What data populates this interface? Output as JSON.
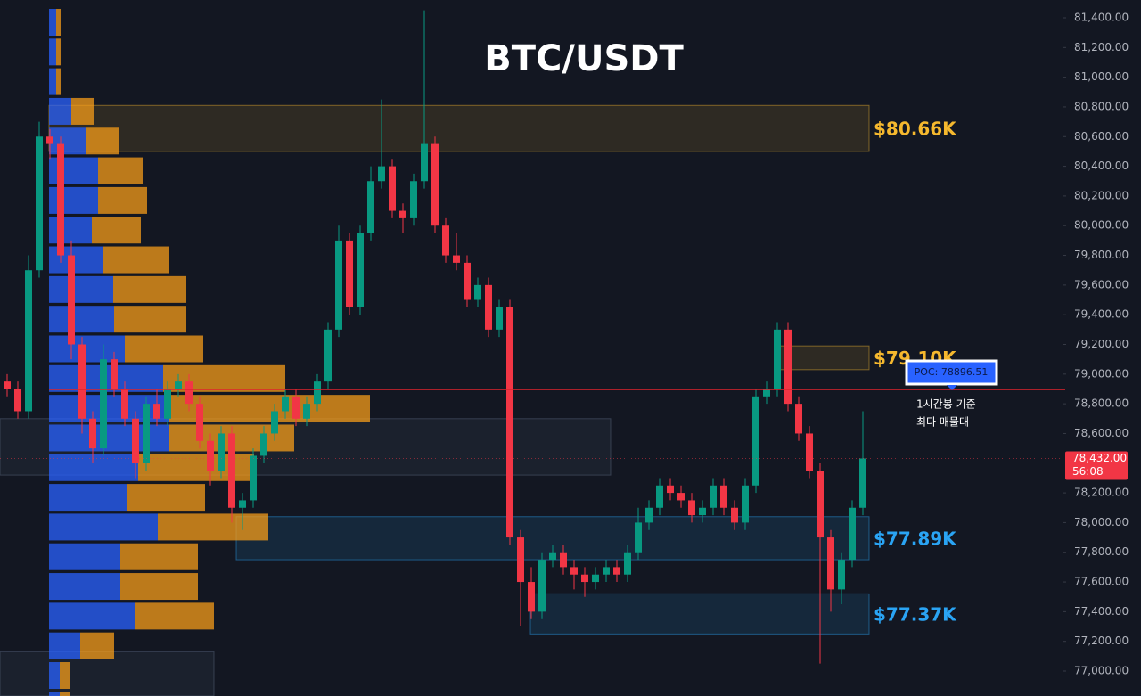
{
  "chart_data": {
    "type": "candlestick",
    "title": "BTC/USDT",
    "ylim": [
      76832,
      81520
    ],
    "yticks": [
      {
        "value": 77000,
        "label": "77,000.00"
      },
      {
        "value": 77200,
        "label": "77,200.00"
      },
      {
        "value": 77400,
        "label": "77,400.00"
      },
      {
        "value": 77600,
        "label": "77,600.00"
      },
      {
        "value": 77800,
        "label": "77,800.00"
      },
      {
        "value": 78000,
        "label": "78,000.00"
      },
      {
        "value": 78200,
        "label": "78,200.00"
      },
      {
        "value": 78600,
        "label": "78,600.00"
      },
      {
        "value": 78800,
        "label": "78,800.00"
      },
      {
        "value": 79000,
        "label": "79,000.00"
      },
      {
        "value": 79200,
        "label": "79,200.00"
      },
      {
        "value": 79400,
        "label": "79,400.00"
      },
      {
        "value": 79600,
        "label": "79,600.00"
      },
      {
        "value": 79800,
        "label": "79,800.00"
      },
      {
        "value": 80000,
        "label": "80,000.00"
      },
      {
        "value": 80200,
        "label": "80,200.00"
      },
      {
        "value": 80400,
        "label": "80,400.00"
      },
      {
        "value": 80600,
        "label": "80,600.00"
      },
      {
        "value": 80800,
        "label": "80,800.00"
      },
      {
        "value": 81000,
        "label": "81,000.00"
      },
      {
        "value": 81200,
        "label": "81,200.00"
      },
      {
        "value": 81400,
        "label": "81,400.00"
      }
    ],
    "up_color": "#089981",
    "down_color": "#f23645",
    "open": [
      78950,
      78900,
      78750,
      79700,
      80600,
      80550,
      79800,
      79200,
      78700,
      78500,
      79100,
      78900,
      78700,
      78400,
      78800,
      78700,
      78900,
      78950,
      78800,
      78550,
      78350,
      78600,
      78100,
      78150,
      78450,
      78600,
      78750,
      78850,
      78700,
      78800,
      78950,
      79300,
      79900,
      79450,
      79950,
      80300,
      80400,
      80100,
      80050,
      80300,
      80550,
      80000,
      79800,
      79750,
      79500,
      79600,
      79300,
      79450,
      77900,
      77600,
      77400,
      77750,
      77800,
      77700,
      77650,
      77600,
      77650,
      77700,
      77650,
      77800,
      78000,
      78100,
      78250,
      78200,
      78150,
      78050,
      78100,
      78250,
      78100,
      78000,
      78250,
      78850,
      78900,
      79300,
      78800,
      78600,
      78350,
      77900,
      77550,
      77750,
      78100
    ],
    "high": [
      79000,
      78950,
      79800,
      80700,
      80650,
      80600,
      79900,
      79250,
      78750,
      79200,
      79150,
      78950,
      78750,
      78850,
      78900,
      78950,
      79000,
      79000,
      78850,
      78600,
      78650,
      78650,
      78200,
      78500,
      78650,
      78800,
      78900,
      78900,
      78850,
      79000,
      79350,
      80000,
      79950,
      80000,
      80400,
      80850,
      80450,
      80150,
      80350,
      81450,
      80600,
      80050,
      79950,
      79800,
      79650,
      79650,
      79500,
      79500,
      77950,
      77700,
      77800,
      77850,
      77850,
      77750,
      77700,
      77700,
      77750,
      77750,
      77850,
      78100,
      78150,
      78300,
      78300,
      78250,
      78200,
      78150,
      78300,
      78300,
      78150,
      78300,
      78900,
      78950,
      79350,
      79350,
      78850,
      78650,
      78400,
      77950,
      77800,
      78150,
      78750
    ],
    "low": [
      78850,
      78700,
      78700,
      79650,
      80450,
      79750,
      79100,
      78600,
      78400,
      78450,
      78850,
      78650,
      78300,
      78350,
      78650,
      78650,
      78850,
      78750,
      78500,
      78250,
      78300,
      78000,
      77950,
      78100,
      78400,
      78550,
      78700,
      78650,
      78650,
      78750,
      78900,
      79250,
      79400,
      79400,
      79900,
      80250,
      80050,
      79950,
      80000,
      80250,
      79950,
      79750,
      79700,
      79450,
      79450,
      79250,
      79250,
      77850,
      77300,
      77350,
      77350,
      77700,
      77650,
      77550,
      77500,
      77550,
      77600,
      77600,
      77600,
      77750,
      77950,
      78050,
      78150,
      78100,
      78000,
      78000,
      78050,
      78050,
      77950,
      77950,
      78200,
      78800,
      78850,
      78750,
      78550,
      78300,
      77050,
      77400,
      77450,
      77700,
      78050
    ],
    "close": [
      78900,
      78750,
      79700,
      80600,
      80550,
      79800,
      79200,
      78700,
      78500,
      79100,
      78900,
      78700,
      78400,
      78800,
      78700,
      78900,
      78950,
      78800,
      78550,
      78350,
      78600,
      78100,
      78150,
      78450,
      78600,
      78750,
      78850,
      78700,
      78800,
      78950,
      79300,
      79900,
      79450,
      79950,
      80300,
      80400,
      80100,
      80050,
      80300,
      80550,
      80000,
      79800,
      79750,
      79500,
      79600,
      79300,
      79450,
      77900,
      77600,
      77400,
      77750,
      77800,
      77700,
      77650,
      77600,
      77650,
      77700,
      77650,
      77800,
      78000,
      78100,
      78250,
      78200,
      78150,
      78050,
      78100,
      78250,
      78100,
      78000,
      78250,
      78850,
      78900,
      79300,
      78800,
      78600,
      78350,
      77900,
      77550,
      77750,
      78100,
      78432
    ],
    "volume_profile": {
      "prices": [
        81400,
        81200,
        81000,
        80800,
        80600,
        80400,
        80200,
        80000,
        79800,
        79600,
        79400,
        79200,
        79000,
        78800,
        78600,
        78400,
        78200,
        78000,
        77800,
        77600,
        77400,
        77200,
        77000,
        76800
      ],
      "buy": [
        8,
        8,
        8,
        25,
        42,
        55,
        55,
        48,
        60,
        72,
        73,
        85,
        128,
        135,
        135,
        100,
        87,
        122,
        80,
        80,
        97,
        35,
        12,
        12
      ],
      "sell": [
        5,
        5,
        5,
        25,
        37,
        50,
        55,
        55,
        75,
        82,
        81,
        88,
        137,
        225,
        140,
        130,
        88,
        124,
        87,
        87,
        88,
        38,
        12,
        12
      ],
      "buy_color": "#2962ff",
      "sell_color": "#f59c1a"
    },
    "zones": [
      {
        "label": "$80.66K",
        "low": 80500,
        "high": 80810,
        "color": "#f5b82e"
      },
      {
        "label": "$79.10K",
        "low": 79030,
        "high": 79190,
        "color": "#f5b82e"
      },
      {
        "low": 78320,
        "high": 78700,
        "color": "#5d6b86"
      },
      {
        "label": "$77.89K",
        "low": 77750,
        "high": 78040,
        "color": "#2aa4f4"
      },
      {
        "label": "$77.37K",
        "low": 77250,
        "high": 77520,
        "color": "#2aa4f4"
      },
      {
        "low": 76832,
        "high": 77130,
        "color": "#5d6b86"
      }
    ],
    "poc": {
      "value": 78896.51,
      "label": "POC: 78896.51"
    },
    "annotation": [
      "1시간봉 기준",
      "최다 매물대"
    ],
    "last_price": {
      "value": 78432,
      "label": "78,432.00"
    },
    "countdown": "56:08"
  }
}
